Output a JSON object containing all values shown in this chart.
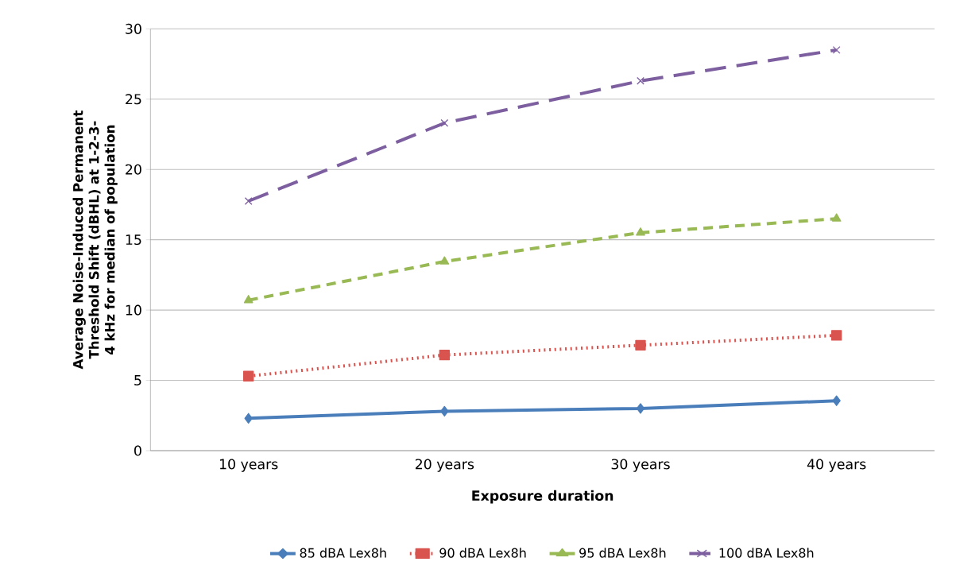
{
  "chart_data": {
    "type": "line",
    "xlabel": "Exposure duration",
    "ylabel": "Average Noise-Induced Permanent Threshold Shift (dBHL) at 1-2-3-4 kHz  for median of population",
    "categories": [
      "10 years",
      "20 years",
      "30 years",
      "40 years"
    ],
    "series": [
      {
        "name": "85 dBA Lex8h",
        "color": "#4a7ebb",
        "values": [
          2.3,
          2.8,
          3.0,
          3.55
        ],
        "marker": "diamond",
        "line_style": "solid"
      },
      {
        "name": "90 dBA Lex8h",
        "color": "#d9534f",
        "values": [
          5.3,
          6.8,
          7.5,
          8.2
        ],
        "marker": "square",
        "line_style": "dotted"
      },
      {
        "name": "95 dBA Lex8h",
        "color": "#98b954",
        "values": [
          10.7,
          13.45,
          15.5,
          16.5
        ],
        "marker": "triangle",
        "line_style": "dashed"
      },
      {
        "name": "100 dBA Lex8h",
        "color": "#7d5fa0",
        "values": [
          17.75,
          23.3,
          26.3,
          28.5
        ],
        "marker": "cross",
        "line_style": "longdash"
      }
    ],
    "ylim": [
      0,
      30
    ],
    "yticks": [
      0,
      5,
      10,
      15,
      20,
      25,
      30
    ],
    "grid": "y",
    "legend": "bottom"
  }
}
